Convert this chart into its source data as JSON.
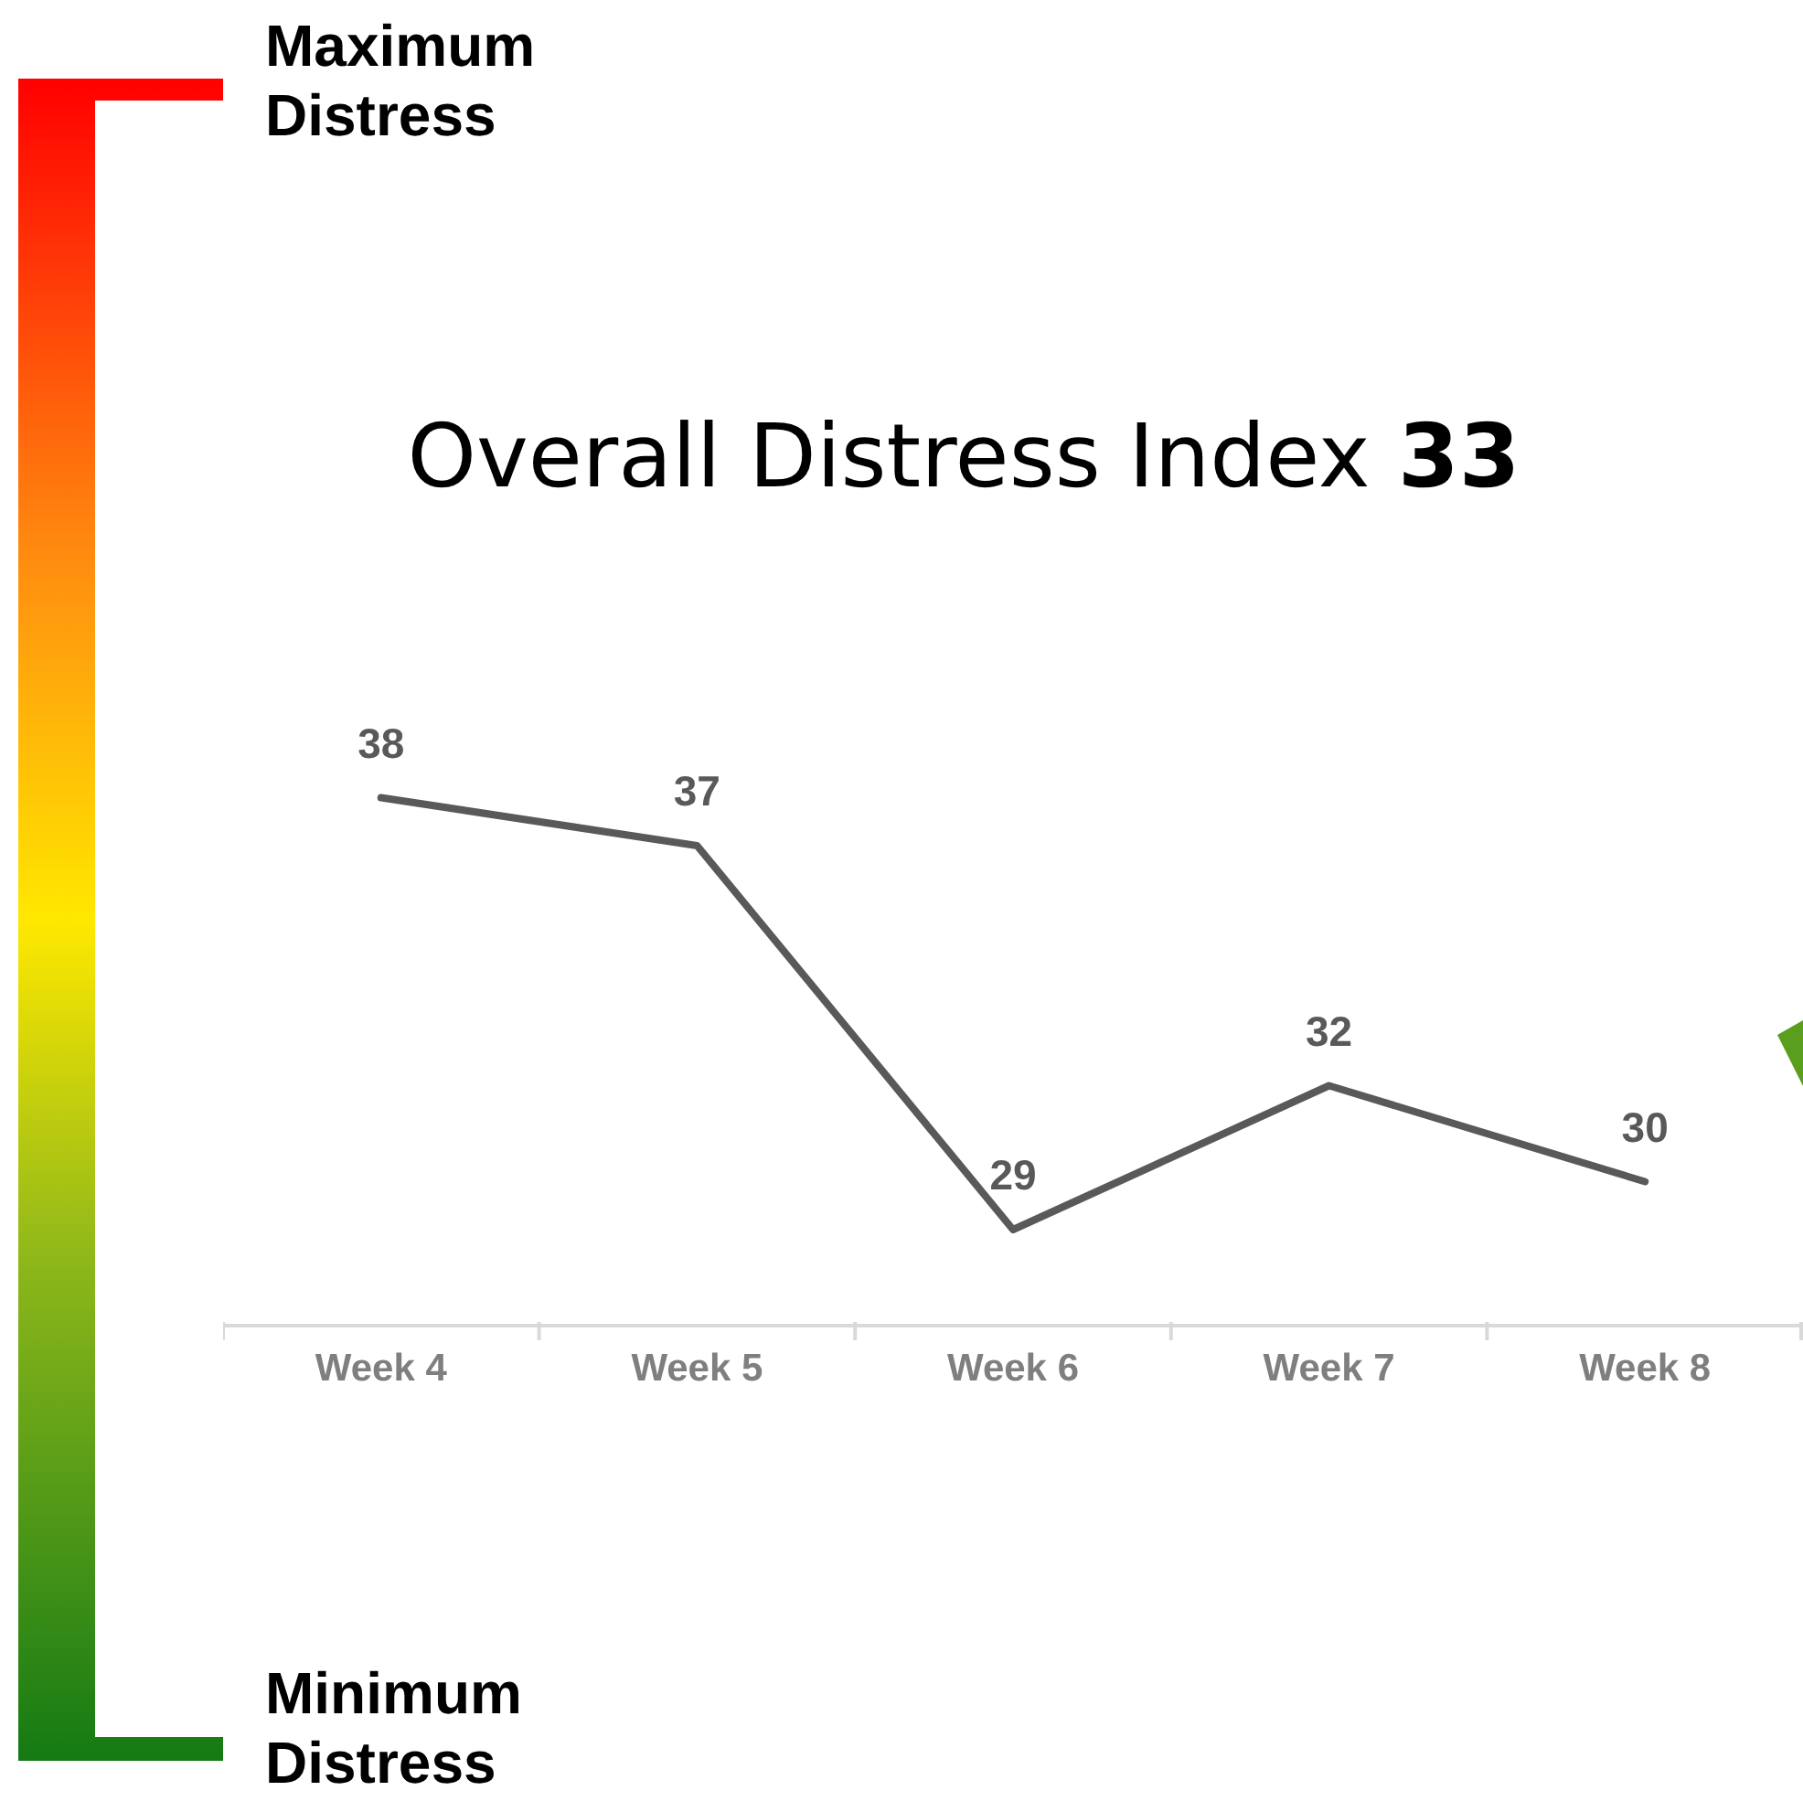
{
  "chart_data": {
    "type": "line",
    "title": "Overall Distress Index 33",
    "categories": [
      "Week 4",
      "Week 5",
      "Week 6",
      "Week 7",
      "Week 8"
    ],
    "series": [
      {
        "color": "#595959",
        "values": [
          38,
          37,
          29,
          32,
          30
        ]
      }
    ],
    "data_labels": true,
    "tick_labels": "x",
    "annotations": [
      "Maximum Distress",
      "Minimum Distress"
    ]
  }
}
